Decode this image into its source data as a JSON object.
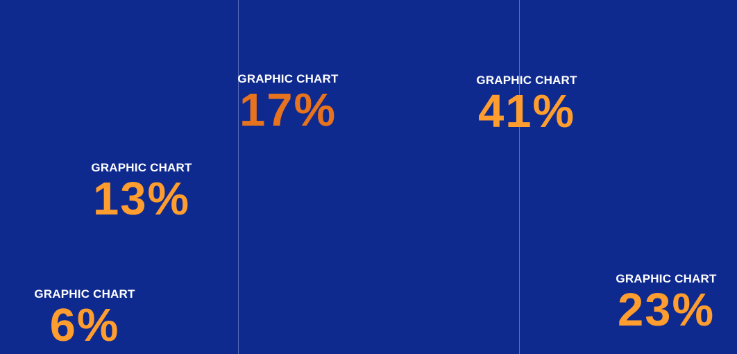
{
  "colors": {
    "background": "#0f2a8f",
    "label": "#ffffff",
    "divider": "#8a9bd6",
    "value_orange": "#ff9d2e",
    "value_dark_orange": "#e8731e"
  },
  "chart_data": {
    "type": "scatter",
    "points": [
      {
        "label": "GRAPHIC CHART",
        "value": "6%",
        "color": "#ff9d2e"
      },
      {
        "label": "GRAPHIC CHART",
        "value": "13%",
        "color": "#ff9d2e"
      },
      {
        "label": "GRAPHIC CHART",
        "value": "17%",
        "color": "#e8731e"
      },
      {
        "label": "GRAPHIC CHART",
        "value": "41%",
        "color": "#ff9d2e"
      },
      {
        "label": "GRAPHIC CHART",
        "value": "23%",
        "color": "#ff9d2e"
      }
    ],
    "grid": "vertical dividers"
  }
}
